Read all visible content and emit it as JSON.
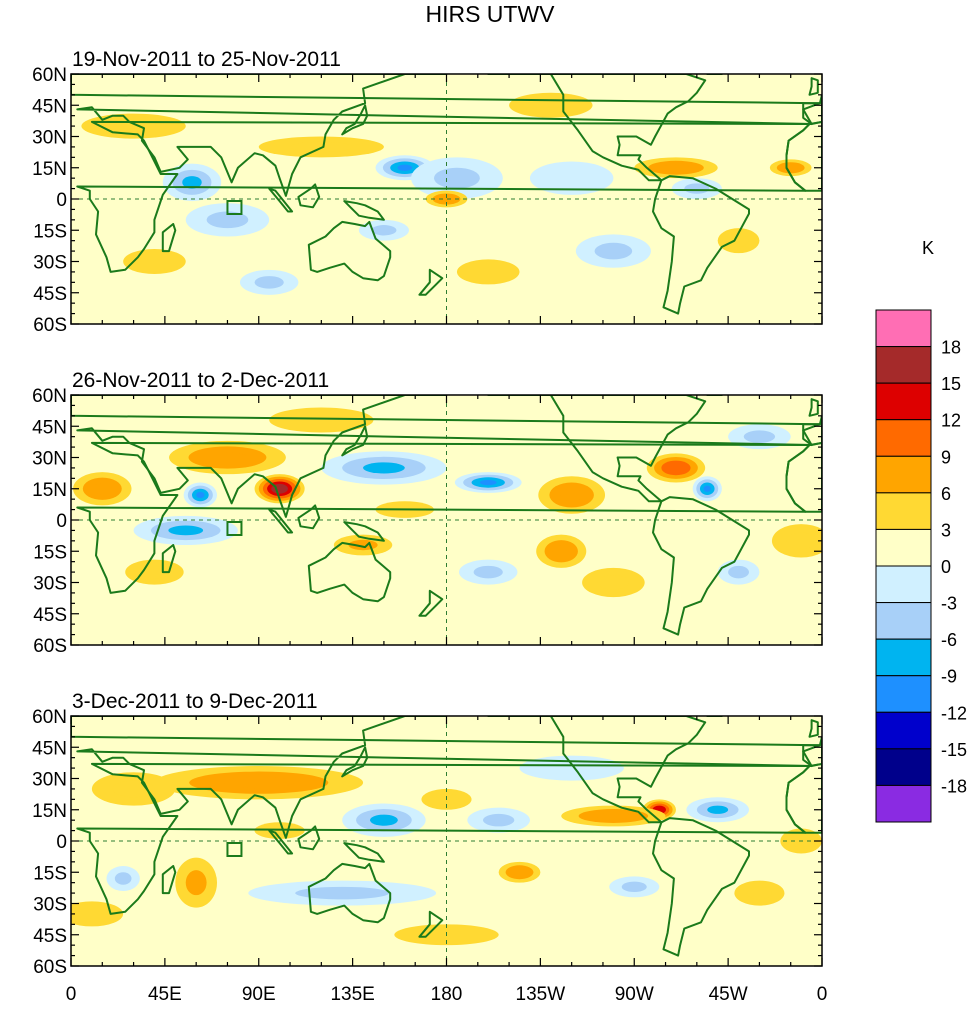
{
  "chart_data": {
    "type": "heatmap",
    "title": "HIRS UTWV",
    "units": "K",
    "x_ticks": [
      "0",
      "45E",
      "90E",
      "135E",
      "180",
      "135W",
      "90W",
      "45W",
      "0"
    ],
    "y_ticks": [
      "60N",
      "45N",
      "30N",
      "15N",
      "0",
      "15S",
      "30S",
      "45S",
      "60S"
    ],
    "x_range_deg": [
      0,
      360
    ],
    "y_range_deg": [
      -60,
      60
    ],
    "colorbar": {
      "levels": [
        "18",
        "15",
        "12",
        "9",
        "6",
        "3",
        "0",
        "-3",
        "-6",
        "-9",
        "-12",
        "-15",
        "-18"
      ],
      "colors": [
        "#ff6eb4",
        "#a52a2a",
        "#dd0000",
        "#ff6a00",
        "#ffa500",
        "#ffd933",
        "#ffffc8",
        "#d0f0ff",
        "#a8d0f8",
        "#00b4f0",
        "#1e90ff",
        "#0000cc",
        "#00008b",
        "#8a2be2"
      ]
    },
    "panels": [
      {
        "subtitle": "19-Nov-2011 to 25-Nov-2011",
        "anomalies": [
          {
            "lon": 160,
            "lat": 15,
            "value": -10,
            "rlon": 14,
            "rlat": 6
          },
          {
            "lon": 185,
            "lat": 10,
            "value": -6,
            "rlon": 22,
            "rlat": 10
          },
          {
            "lon": 58,
            "lat": 8,
            "value": -7,
            "rlon": 14,
            "rlat": 9
          },
          {
            "lon": 75,
            "lat": -10,
            "value": -5,
            "rlon": 20,
            "rlat": 8
          },
          {
            "lon": 180,
            "lat": 0,
            "value": 8,
            "rlon": 10,
            "rlat": 4
          },
          {
            "lon": 290,
            "lat": 15,
            "value": 7,
            "rlon": 20,
            "rlat": 5
          },
          {
            "lon": 345,
            "lat": 15,
            "value": 7,
            "rlon": 10,
            "rlat": 4
          },
          {
            "lon": 150,
            "lat": -15,
            "value": -5,
            "rlon": 12,
            "rlat": 5
          },
          {
            "lon": 120,
            "lat": 25,
            "value": 4,
            "rlon": 30,
            "rlat": 5
          },
          {
            "lon": 30,
            "lat": 35,
            "value": 3,
            "rlon": 25,
            "rlat": 6
          },
          {
            "lon": 230,
            "lat": 45,
            "value": 4,
            "rlon": 20,
            "rlat": 6
          },
          {
            "lon": 320,
            "lat": -20,
            "value": 4,
            "rlon": 10,
            "rlat": 6
          },
          {
            "lon": 260,
            "lat": -25,
            "value": -4,
            "rlon": 18,
            "rlat": 8
          },
          {
            "lon": 200,
            "lat": -35,
            "value": 3,
            "rlon": 15,
            "rlat": 6
          },
          {
            "lon": 40,
            "lat": -30,
            "value": 3,
            "rlon": 15,
            "rlat": 6
          },
          {
            "lon": 95,
            "lat": -40,
            "value": -4,
            "rlon": 14,
            "rlat": 6
          },
          {
            "lon": 300,
            "lat": 5,
            "value": -5,
            "rlon": 12,
            "rlat": 5
          },
          {
            "lon": 240,
            "lat": 10,
            "value": -3,
            "rlon": 20,
            "rlat": 8
          }
        ]
      },
      {
        "subtitle": "26-Nov-2011 to 2-Dec-2011",
        "anomalies": [
          {
            "lon": 100,
            "lat": 15,
            "value": 16,
            "rlon": 12,
            "rlat": 7
          },
          {
            "lon": 75,
            "lat": 30,
            "value": 8,
            "rlon": 28,
            "rlat": 8
          },
          {
            "lon": 15,
            "lat": 15,
            "value": 7,
            "rlon": 14,
            "rlat": 8
          },
          {
            "lon": 62,
            "lat": 12,
            "value": -12,
            "rlon": 8,
            "rlat": 6
          },
          {
            "lon": 55,
            "lat": -5,
            "value": -7,
            "rlon": 25,
            "rlat": 7
          },
          {
            "lon": 150,
            "lat": 25,
            "value": -8,
            "rlon": 30,
            "rlat": 8
          },
          {
            "lon": 200,
            "lat": 18,
            "value": -10,
            "rlon": 16,
            "rlat": 5
          },
          {
            "lon": 240,
            "lat": 12,
            "value": 8,
            "rlon": 16,
            "rlat": 9
          },
          {
            "lon": 290,
            "lat": 25,
            "value": 11,
            "rlon": 14,
            "rlat": 7
          },
          {
            "lon": 305,
            "lat": 15,
            "value": -10,
            "rlon": 7,
            "rlat": 6
          },
          {
            "lon": 235,
            "lat": -15,
            "value": 7,
            "rlon": 12,
            "rlat": 8
          },
          {
            "lon": 140,
            "lat": -12,
            "value": 6,
            "rlon": 14,
            "rlat": 5
          },
          {
            "lon": 200,
            "lat": -25,
            "value": -6,
            "rlon": 14,
            "rlat": 6
          },
          {
            "lon": 350,
            "lat": -10,
            "value": 5,
            "rlon": 14,
            "rlat": 8
          },
          {
            "lon": 320,
            "lat": -25,
            "value": -5,
            "rlon": 10,
            "rlat": 6
          },
          {
            "lon": 160,
            "lat": 5,
            "value": 5,
            "rlon": 14,
            "rlat": 4
          },
          {
            "lon": 40,
            "lat": -25,
            "value": 4,
            "rlon": 14,
            "rlat": 6
          },
          {
            "lon": 260,
            "lat": -30,
            "value": 5,
            "rlon": 15,
            "rlat": 7
          },
          {
            "lon": 330,
            "lat": 40,
            "value": -4,
            "rlon": 15,
            "rlat": 6
          },
          {
            "lon": 120,
            "lat": 48,
            "value": 3,
            "rlon": 25,
            "rlat": 6
          }
        ]
      },
      {
        "subtitle": "3-Dec-2011 to 9-Dec-2011",
        "anomalies": [
          {
            "lon": 90,
            "lat": 28,
            "value": 7,
            "rlon": 50,
            "rlat": 8
          },
          {
            "lon": 30,
            "lat": 25,
            "value": 5,
            "rlon": 20,
            "rlat": 8
          },
          {
            "lon": 282,
            "lat": 15,
            "value": 14,
            "rlon": 8,
            "rlat": 5
          },
          {
            "lon": 260,
            "lat": 12,
            "value": 7,
            "rlon": 25,
            "rlat": 5
          },
          {
            "lon": 310,
            "lat": 15,
            "value": -8,
            "rlon": 15,
            "rlat": 6
          },
          {
            "lon": 150,
            "lat": 10,
            "value": -8,
            "rlon": 20,
            "rlat": 8
          },
          {
            "lon": 205,
            "lat": 10,
            "value": -6,
            "rlon": 15,
            "rlat": 6
          },
          {
            "lon": 215,
            "lat": -15,
            "value": 8,
            "rlon": 10,
            "rlat": 5
          },
          {
            "lon": 130,
            "lat": -25,
            "value": -6,
            "rlon": 45,
            "rlat": 6
          },
          {
            "lon": 60,
            "lat": -20,
            "value": 6,
            "rlon": 10,
            "rlat": 12
          },
          {
            "lon": 25,
            "lat": -18,
            "value": -6,
            "rlon": 8,
            "rlat": 6
          },
          {
            "lon": 270,
            "lat": -22,
            "value": -5,
            "rlon": 12,
            "rlat": 5
          },
          {
            "lon": 330,
            "lat": -25,
            "value": 4,
            "rlon": 12,
            "rlat": 6
          },
          {
            "lon": 350,
            "lat": 0,
            "value": 5,
            "rlon": 10,
            "rlat": 6
          },
          {
            "lon": 180,
            "lat": 20,
            "value": 4,
            "rlon": 12,
            "rlat": 5
          },
          {
            "lon": 240,
            "lat": 35,
            "value": -3,
            "rlon": 25,
            "rlat": 6
          },
          {
            "lon": 100,
            "lat": 5,
            "value": 4,
            "rlon": 12,
            "rlat": 4
          },
          {
            "lon": 10,
            "lat": -35,
            "value": 3,
            "rlon": 15,
            "rlat": 6
          },
          {
            "lon": 180,
            "lat": -45,
            "value": 3,
            "rlon": 25,
            "rlat": 5
          }
        ]
      }
    ]
  }
}
